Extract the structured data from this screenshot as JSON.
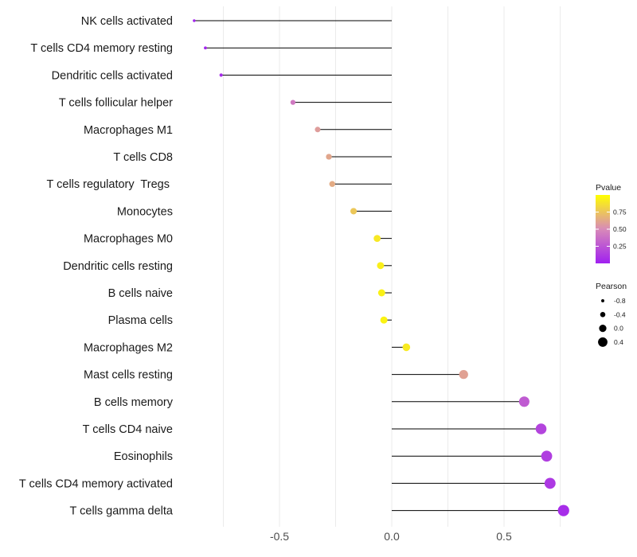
{
  "chart_data": {
    "type": "lollipop",
    "title": "",
    "xlabel": "",
    "ylabel": "",
    "xlim": [
      -0.88,
      0.82
    ],
    "x_ticks": [
      -0.5,
      0.0,
      0.5
    ],
    "x_tick_labels": [
      "-0.5",
      "0.0",
      "0.5"
    ],
    "baseline": 0,
    "grid": true,
    "points": [
      {
        "label": "NK cells activated",
        "value": -0.88,
        "pvalue": 0.02
      },
      {
        "label": "T cells CD4 memory resting",
        "value": -0.83,
        "pvalue": 0.03
      },
      {
        "label": "Dendritic cells activated",
        "value": -0.76,
        "pvalue": 0.05
      },
      {
        "label": "T cells follicular helper",
        "value": -0.44,
        "pvalue": 0.42
      },
      {
        "label": "Macrophages M1",
        "value": -0.33,
        "pvalue": 0.58
      },
      {
        "label": "T cells CD8",
        "value": -0.28,
        "pvalue": 0.62
      },
      {
        "label": "T cells regulatory  Tregs ",
        "value": -0.265,
        "pvalue": 0.64
      },
      {
        "label": "Monocytes",
        "value": -0.17,
        "pvalue": 0.76
      },
      {
        "label": "Macrophages M0",
        "value": -0.065,
        "pvalue": 0.9
      },
      {
        "label": "Dendritic cells resting",
        "value": -0.05,
        "pvalue": 0.93
      },
      {
        "label": "B cells naive",
        "value": -0.045,
        "pvalue": 0.94
      },
      {
        "label": "Plasma cells",
        "value": -0.035,
        "pvalue": 0.95
      },
      {
        "label": "Macrophages M2",
        "value": 0.065,
        "pvalue": 0.91
      },
      {
        "label": "Mast cells resting",
        "value": 0.32,
        "pvalue": 0.6
      },
      {
        "label": "B cells memory",
        "value": 0.59,
        "pvalue": 0.28
      },
      {
        "label": "T cells CD4 naive",
        "value": 0.665,
        "pvalue": 0.17
      },
      {
        "label": "Eosinophils",
        "value": 0.69,
        "pvalue": 0.14
      },
      {
        "label": "T cells CD4 memory activated",
        "value": 0.705,
        "pvalue": 0.12
      },
      {
        "label": "T cells gamma delta",
        "value": 0.765,
        "pvalue": 0.06
      }
    ],
    "legend": {
      "position": "right",
      "color": {
        "title": "Pvalue",
        "range": [
          0.0,
          1.0
        ],
        "ticks": [
          0.25,
          0.5,
          0.75
        ],
        "tick_labels": [
          "0.25",
          "0.50",
          "0.75"
        ],
        "low_color": "#a020f0",
        "mid_color": "#d88ab8",
        "high_color": "#ffff00"
      },
      "size": {
        "title": "Pearson",
        "values": [
          -0.8,
          -0.4,
          0.0,
          0.4
        ],
        "labels": [
          "-0.8",
          "-0.4",
          "0.0",
          "0.4"
        ]
      }
    }
  }
}
